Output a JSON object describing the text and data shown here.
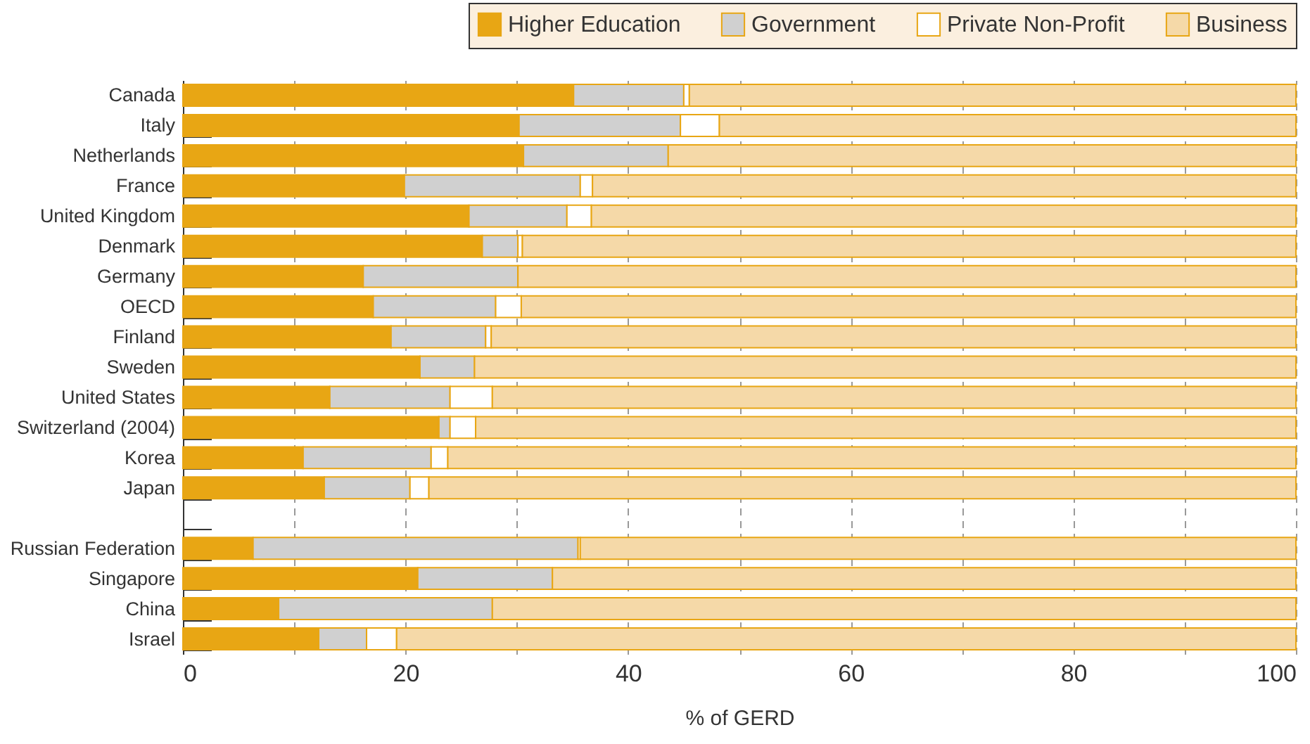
{
  "chart_data": {
    "type": "bar",
    "orientation": "horizontal",
    "stacked": true,
    "categories": [
      "Canada",
      "Italy",
      "Netherlands",
      "France",
      "United Kingdom",
      "Denmark",
      "Germany",
      "OECD",
      "Finland",
      "Sweden",
      "United States",
      "Switzerland (2004)",
      "Korea",
      "Japan",
      null,
      "Russian Federation",
      "Singapore",
      "China",
      "Israel"
    ],
    "series": [
      {
        "name": "Higher Education",
        "color": "#e8a614",
        "values": [
          35.1,
          30.2,
          30.6,
          19.9,
          25.7,
          26.9,
          16.2,
          17.1,
          18.7,
          21.3,
          13.2,
          23.0,
          10.8,
          12.7,
          null,
          6.3,
          21.1,
          8.6,
          12.2
        ]
      },
      {
        "name": "Government",
        "color": "#d0d0d0",
        "values": [
          9.9,
          14.5,
          13.0,
          15.8,
          8.8,
          3.2,
          13.9,
          11.0,
          8.5,
          4.9,
          10.8,
          1.0,
          11.5,
          7.7,
          null,
          29.2,
          12.1,
          19.2,
          4.3
        ]
      },
      {
        "name": "Private Non-Profit",
        "color": "#ffffff",
        "values": [
          0.5,
          3.5,
          0,
          1.1,
          2.2,
          0.4,
          0,
          2.3,
          0.5,
          0,
          3.8,
          2.3,
          1.5,
          1.7,
          null,
          0.2,
          0,
          0,
          2.7
        ]
      },
      {
        "name": "Business",
        "color": "#f5d9a8",
        "values": [
          54.5,
          51.8,
          56.4,
          63.2,
          63.3,
          69.5,
          69.9,
          69.6,
          72.3,
          73.8,
          72.2,
          73.7,
          76.2,
          77.9,
          null,
          64.3,
          66.8,
          72.2,
          80.8
        ]
      }
    ],
    "xlabel": "% of GERD",
    "xlim": [
      0,
      100
    ],
    "xticks": [
      0,
      {
        "value": 10,
        "label": null
      },
      20,
      {
        "value": 30,
        "label": null
      },
      40,
      {
        "value": 50,
        "label": null
      },
      60,
      {
        "value": 70,
        "label": null
      },
      80,
      {
        "value": 90,
        "label": null
      },
      100
    ],
    "grid": "x",
    "legend": "top right"
  }
}
